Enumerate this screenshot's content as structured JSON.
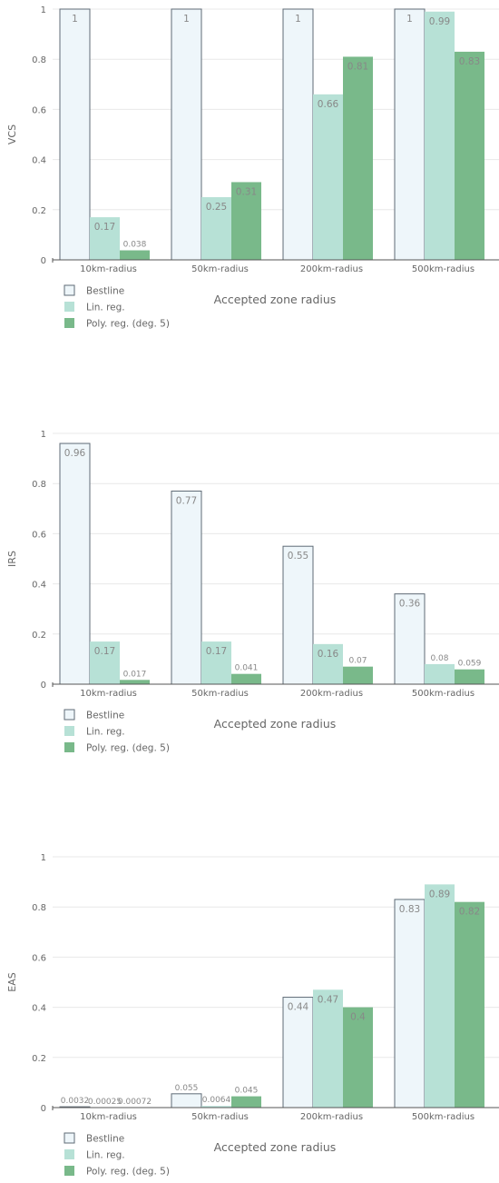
{
  "chart_data": [
    {
      "type": "bar",
      "ylabel": "VCS",
      "xlabel": "Accepted zone radius",
      "ylim": [
        0,
        1
      ],
      "yticks": [
        "0",
        "0.2",
        "0.4",
        "0.6",
        "0.8",
        "1"
      ],
      "categories": [
        "10km-radius",
        "50km-radius",
        "200km-radius",
        "500km-radius"
      ],
      "series": [
        {
          "name": "Bestline",
          "values": [
            1,
            1,
            1,
            1
          ],
          "labels": [
            "1",
            "1",
            "1",
            "1"
          ]
        },
        {
          "name": "Lin. reg.",
          "values": [
            0.17,
            0.25,
            0.66,
            0.99
          ],
          "labels": [
            "0.17",
            "0.25",
            "0.66",
            "0.99"
          ]
        },
        {
          "name": "Poly. reg. (deg. 5)",
          "values": [
            0.038,
            0.31,
            0.81,
            0.83
          ],
          "labels": [
            "0.038",
            "0.31",
            "0.81",
            "0.83"
          ]
        }
      ],
      "grid": true,
      "legend": "bottom-left"
    },
    {
      "type": "bar",
      "ylabel": "IRS",
      "xlabel": "Accepted zone radius",
      "ylim": [
        0,
        1
      ],
      "yticks": [
        "0",
        "0.2",
        "0.4",
        "0.6",
        "0.8",
        "1"
      ],
      "categories": [
        "10km-radius",
        "50km-radius",
        "200km-radius",
        "500km-radius"
      ],
      "series": [
        {
          "name": "Bestline",
          "values": [
            0.96,
            0.77,
            0.55,
            0.36
          ],
          "labels": [
            "0.96",
            "0.77",
            "0.55",
            "0.36"
          ]
        },
        {
          "name": "Lin. reg.",
          "values": [
            0.17,
            0.17,
            0.16,
            0.08
          ],
          "labels": [
            "0.17",
            "0.17",
            "0.16",
            "0.08"
          ]
        },
        {
          "name": "Poly. reg. (deg. 5)",
          "values": [
            0.017,
            0.041,
            0.07,
            0.059
          ],
          "labels": [
            "0.017",
            "0.041",
            "0.07",
            "0.059"
          ]
        }
      ],
      "grid": true,
      "legend": "bottom-left"
    },
    {
      "type": "bar",
      "ylabel": "EAS",
      "xlabel": "Accepted zone radius",
      "ylim": [
        0,
        1
      ],
      "yticks": [
        "0",
        "0.2",
        "0.4",
        "0.6",
        "0.8",
        "1"
      ],
      "categories": [
        "10km-radius",
        "50km-radius",
        "200km-radius",
        "500km-radius"
      ],
      "series": [
        {
          "name": "Bestline",
          "values": [
            0.0032,
            0.055,
            0.44,
            0.83
          ],
          "labels": [
            "0.0032",
            "0.055",
            "0.44",
            "0.83"
          ]
        },
        {
          "name": "Lin. reg.",
          "values": [
            0.00025,
            0.0064,
            0.47,
            0.89
          ],
          "labels": [
            "0.00025",
            "0.0064",
            "0.47",
            "0.89"
          ]
        },
        {
          "name": "Poly. reg. (deg. 5)",
          "values": [
            0.00072,
            0.045,
            0.4,
            0.82
          ],
          "labels": [
            "0.00072",
            "0.045",
            "0.4",
            "0.82"
          ]
        }
      ],
      "grid": true,
      "legend": "bottom-left"
    }
  ],
  "colors": {
    "bestline_fill": "#eef6fa",
    "bestline_stroke": "#5f6b76",
    "linreg_fill": "#b7e1d6",
    "polyreg_fill": "#79b98a",
    "grid": "#e8e8e8",
    "axis": "#555555",
    "text": "#666666",
    "label": "#888888"
  }
}
